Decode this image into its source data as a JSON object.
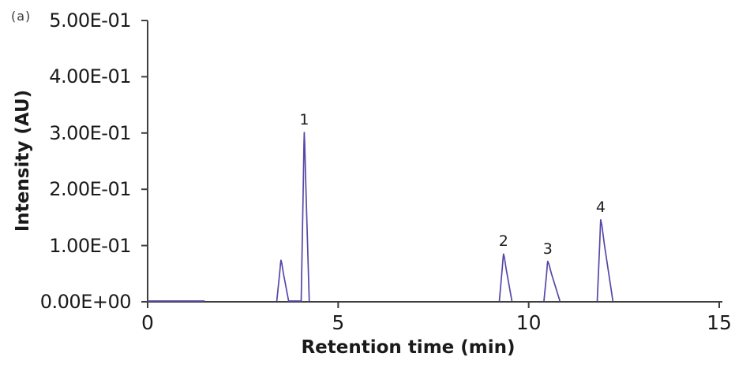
{
  "chart_data": {
    "type": "line",
    "panel_label": "(a)",
    "xlabel": "Retention time (min)",
    "ylabel": "Intensity (AU)",
    "xlim": [
      0,
      15
    ],
    "ylim": [
      0,
      0.5
    ],
    "grid": false,
    "legend": null,
    "x_ticks": [
      {
        "value": 0,
        "label": "0"
      },
      {
        "value": 5,
        "label": "5"
      },
      {
        "value": 10,
        "label": "10"
      },
      {
        "value": 15,
        "label": "15"
      }
    ],
    "y_ticks": [
      {
        "value": 0.0,
        "label": "0.00E+00"
      },
      {
        "value": 0.1,
        "label": "1.00E-01"
      },
      {
        "value": 0.2,
        "label": "2.00E-01"
      },
      {
        "value": 0.3,
        "label": "3.00E-01"
      },
      {
        "value": 0.4,
        "label": "4.00E-01"
      },
      {
        "value": 0.5,
        "label": "5.00E-01"
      }
    ],
    "baseline_segment": {
      "x_start": 0,
      "x_end": 1.5,
      "value": 0
    },
    "peaks": [
      {
        "label": "",
        "start": 3.39,
        "apex": 3.5,
        "end": 3.7,
        "height": 0.074
      },
      {
        "label": "1",
        "start": 4.03,
        "apex": 4.11,
        "end": 4.24,
        "height": 0.301
      },
      {
        "label": "2",
        "start": 9.23,
        "apex": 9.34,
        "end": 9.56,
        "height": 0.085
      },
      {
        "label": "3",
        "start": 10.4,
        "apex": 10.5,
        "end": 10.82,
        "height": 0.072
      },
      {
        "label": "4",
        "start": 11.8,
        "apex": 11.89,
        "end": 12.21,
        "height": 0.146
      }
    ],
    "colors": {
      "trace": "#5847a6",
      "axis": "#3f3f3f",
      "text": "#1a1a1a"
    }
  }
}
